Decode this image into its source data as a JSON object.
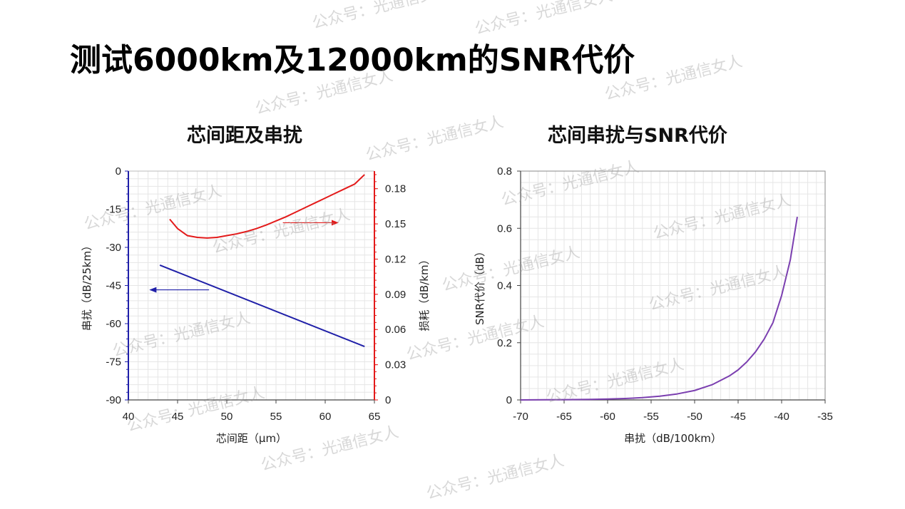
{
  "page": {
    "title": "测试6000km及12000km的SNR代价",
    "watermark": "公众号：光通信女人"
  },
  "colors": {
    "crosstalk": "#1f1fa8",
    "loss": "#e31a1a",
    "snr": "#7b3fb0",
    "grid": "#e6e6e6"
  },
  "chart_data": [
    {
      "type": "line",
      "title": "芯间距及串扰",
      "xlabel": "芯间距（μm）",
      "ylabel": "串扰（dB/25km）",
      "y2label": "损耗（dB/km）",
      "xlim": [
        40,
        65
      ],
      "ylim": [
        -90,
        0
      ],
      "y2lim": [
        0,
        0.195
      ],
      "xticks": [
        40,
        45,
        50,
        55,
        60,
        65
      ],
      "yticks": [
        0,
        -15,
        -30,
        -45,
        -60,
        -75,
        -90
      ],
      "y2ticks": [
        0,
        0.03,
        0.06,
        0.09,
        0.12,
        0.15,
        0.18
      ],
      "grid": true,
      "series": [
        {
          "axis": "left",
          "x": [
            43.2,
            64.0
          ],
          "y": [
            -37.0,
            -69.0
          ]
        },
        {
          "axis": "right",
          "x": [
            44.2,
            45,
            46,
            47,
            48,
            49,
            50,
            51,
            52,
            53,
            54,
            55,
            56,
            57,
            58,
            59,
            60,
            61,
            62,
            63,
            64
          ],
          "y": [
            0.154,
            0.146,
            0.14,
            0.1385,
            0.138,
            0.1385,
            0.14,
            0.1415,
            0.1435,
            0.146,
            0.149,
            0.1525,
            0.156,
            0.16,
            0.164,
            0.168,
            0.172,
            0.176,
            0.18,
            0.184,
            0.192
          ]
        }
      ],
      "annotations": [
        {
          "kind": "arrow",
          "points_to": "left-axis",
          "from": [
            48.2,
            -46.7
          ],
          "to": [
            42.2,
            -46.7
          ]
        },
        {
          "kind": "arrow",
          "points_to": "right-axis",
          "from": [
            55.7,
            0.151
          ],
          "to": [
            61.3,
            0.151
          ]
        }
      ]
    },
    {
      "type": "line",
      "title": "芯间串扰与SNR代价",
      "xlabel": "串扰（dB/100km）",
      "ylabel": "SNR代价（dB）",
      "xlim": [
        -70,
        -35
      ],
      "ylim": [
        0,
        0.8
      ],
      "xticks": [
        -70,
        -65,
        -60,
        -55,
        -50,
        -45,
        -40,
        -35
      ],
      "yticks": [
        0,
        0.2,
        0.4,
        0.6,
        0.8
      ],
      "grid": true,
      "series": [
        {
          "x": [
            -70,
            -65,
            -62,
            -60,
            -58,
            -56,
            -54,
            -52,
            -50,
            -48,
            -46,
            -45,
            -44,
            -43,
            -42,
            -41,
            -40,
            -39,
            -38.2
          ],
          "y": [
            0.0,
            0.001,
            0.002,
            0.003,
            0.005,
            0.008,
            0.013,
            0.021,
            0.033,
            0.053,
            0.084,
            0.105,
            0.133,
            0.168,
            0.213,
            0.27,
            0.365,
            0.49,
            0.64
          ]
        }
      ]
    }
  ]
}
